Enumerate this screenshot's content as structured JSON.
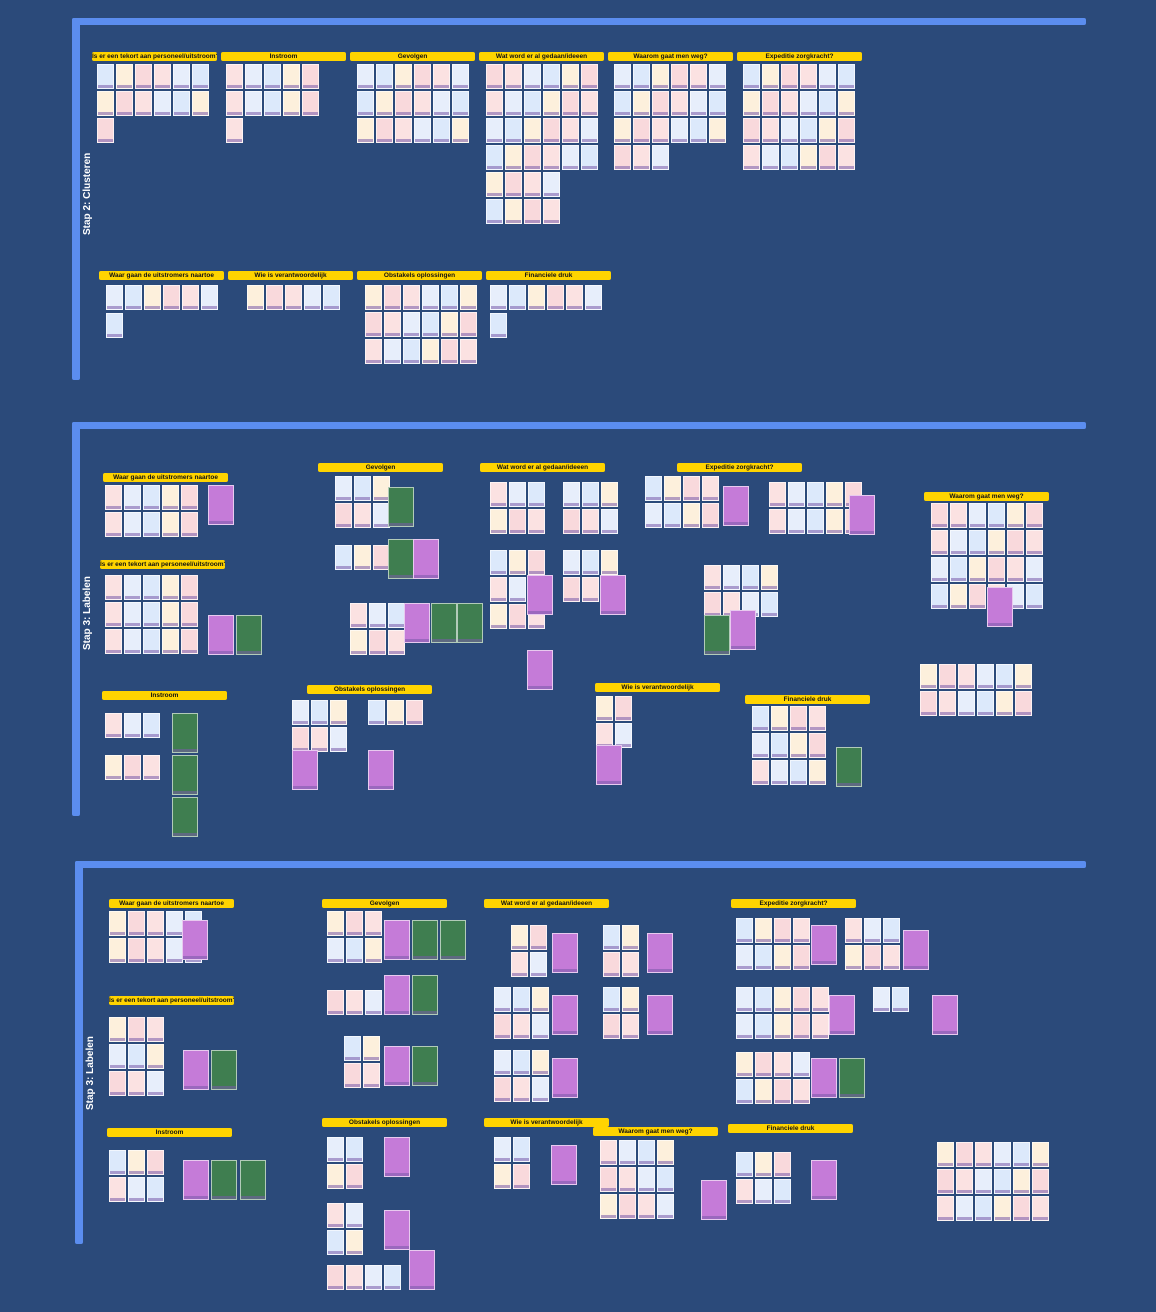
{
  "sections": [
    {
      "label": "Stap 2: Clusteren",
      "clusters": [
        "Is er een tekort aan personeel/uitstroom?",
        "Instroom",
        "Gevolgen",
        "Wat word er al gedaan/ideeen",
        "Waarom gaat men weg?",
        "Expeditie zorgkracht?",
        "Waar gaan de uitstromers naartoe",
        "Wie is verantwoordelijk",
        "Obstakels oplossingen",
        "Financiele druk"
      ]
    },
    {
      "label": "Stap 3: Labelen",
      "clusters": [
        "Waar gaan de uitstromers naartoe",
        "Is er een tekort aan personeel/uitstroom?",
        "Instroom",
        "Gevolgen",
        "Obstakels oplossingen",
        "Wat word er al gedaan/ideeen",
        "Expeditie zorgkracht?",
        "Wie is verantwoordelijk",
        "Financiele druk",
        "Waarom gaat men weg?"
      ]
    },
    {
      "label": "Stap 3: Labelen",
      "clusters": [
        "Waar gaan de uitstromers naartoe",
        "Is er een tekort aan personeel/uitstroom?",
        "Instroom",
        "Gevolgen",
        "Obstakels oplossingen",
        "Wat word er al gedaan/ideeen",
        "Expeditie zorgkracht?",
        "Wie is verantwoordelijk",
        "Waarom gaat men weg?",
        "Financiele druk"
      ]
    }
  ]
}
